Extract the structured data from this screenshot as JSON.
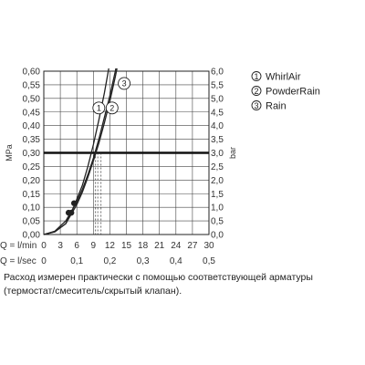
{
  "chart_data": {
    "type": "line",
    "ylabel_left": "MPa",
    "ylabel_right": "bar",
    "y_left_ticks": [
      "0,00",
      "0,05",
      "0,10",
      "0,15",
      "0,20",
      "0,25",
      "0,30",
      "0,35",
      "0,40",
      "0,45",
      "0,50",
      "0,55",
      "0,60"
    ],
    "y_right_ticks": [
      "0,0",
      "0,5",
      "1,0",
      "1,5",
      "2,0",
      "2,5",
      "3,0",
      "3,5",
      "4,0",
      "4,5",
      "5,0",
      "5,5",
      "6,0"
    ],
    "ylim": [
      0,
      0.6
    ],
    "xlim": [
      0,
      30
    ],
    "x_rows": [
      {
        "label": "Q = l/min",
        "ticks": [
          "0",
          "3",
          "6",
          "9",
          "12",
          "15",
          "18",
          "21",
          "24",
          "27",
          "30"
        ]
      },
      {
        "label": "Q = l/sec",
        "ticks": [
          "0",
          "0,1",
          "0,2",
          "0,3",
          "0,4",
          "0,5"
        ]
      }
    ],
    "reference_line": {
      "y": 0.3,
      "label_left": "0,30",
      "label_right": "3,0"
    },
    "series": [
      {
        "name": "WhirlAir",
        "marker": "1",
        "points": [
          [
            0,
            0
          ],
          [
            2,
            0.01
          ],
          [
            4,
            0.04
          ],
          [
            5,
            0.08
          ],
          [
            6,
            0.13
          ],
          [
            7,
            0.18
          ],
          [
            8,
            0.25
          ],
          [
            9,
            0.33
          ],
          [
            10,
            0.42
          ],
          [
            11,
            0.52
          ],
          [
            11.8,
            0.61
          ]
        ],
        "operating_point": [
          5.0,
          0.08
        ],
        "flow_at_reference": 9.4
      },
      {
        "name": "PowderRain",
        "marker": "2",
        "points": [
          [
            0,
            0
          ],
          [
            2,
            0.01
          ],
          [
            4,
            0.04
          ],
          [
            5,
            0.075
          ],
          [
            6,
            0.11
          ],
          [
            7,
            0.155
          ],
          [
            8,
            0.21
          ],
          [
            9,
            0.27
          ],
          [
            10,
            0.335
          ],
          [
            11,
            0.41
          ],
          [
            12,
            0.49
          ],
          [
            13,
            0.58
          ],
          [
            13.3,
            0.61
          ]
        ],
        "operating_point": [
          4.5,
          0.08
        ],
        "flow_at_reference": 9.8
      },
      {
        "name": "Rain",
        "marker": "3",
        "points": [
          [
            0,
            0
          ],
          [
            2,
            0.012
          ],
          [
            4,
            0.05
          ],
          [
            5,
            0.085
          ],
          [
            6,
            0.12
          ],
          [
            7,
            0.165
          ],
          [
            8,
            0.22
          ],
          [
            9,
            0.28
          ],
          [
            10,
            0.35
          ],
          [
            11,
            0.43
          ],
          [
            12,
            0.51
          ],
          [
            13,
            0.6
          ],
          [
            13.1,
            0.61
          ]
        ],
        "operating_point": [
          5.5,
          0.115
        ],
        "flow_at_reference": 10.4
      }
    ]
  },
  "legend": [
    {
      "marker": "1",
      "label": "WhirlAir"
    },
    {
      "marker": "2",
      "label": "PowderRain"
    },
    {
      "marker": "3",
      "label": "Rain"
    }
  ],
  "footnote": "Расход измерен практически с помощью соответствующей арматуры (термостат/смеситель/скрытый клапан)."
}
